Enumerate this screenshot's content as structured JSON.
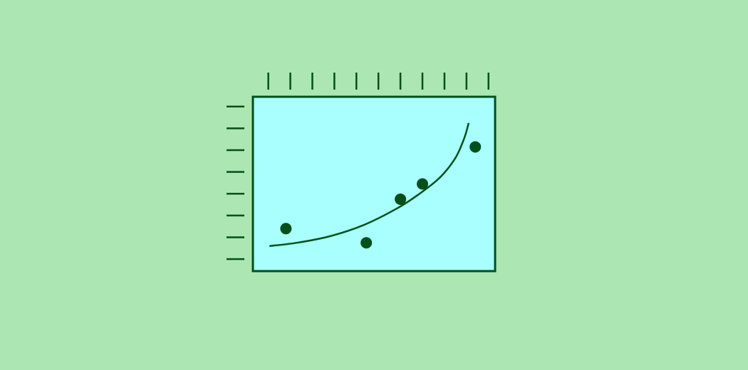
{
  "colors": {
    "background": "#ace6b2",
    "plot_fill": "#a8fffe",
    "ink": "#00501c"
  },
  "chart_data": {
    "type": "scatter",
    "title": "",
    "xlabel": "",
    "ylabel": "",
    "grid": false,
    "legend": "none",
    "xlim": [
      0,
      11
    ],
    "ylim": [
      0,
      8
    ],
    "x_ticks": [
      0.7,
      1.7,
      2.7,
      3.7,
      4.7,
      5.7,
      6.7,
      7.7,
      8.7,
      9.7,
      10.7
    ],
    "y_ticks": [
      0.55,
      1.55,
      2.55,
      3.55,
      4.55,
      5.55,
      6.55,
      7.55
    ],
    "points": [
      {
        "x": 1.5,
        "y": 1.95
      },
      {
        "x": 5.15,
        "y": 1.3
      },
      {
        "x": 6.7,
        "y": 3.3
      },
      {
        "x": 7.7,
        "y": 4.0
      },
      {
        "x": 10.1,
        "y": 5.7
      }
    ],
    "fit_curve": [
      {
        "x": 0.75,
        "y": 1.15
      },
      {
        "x": 2.0,
        "y": 1.3
      },
      {
        "x": 3.5,
        "y": 1.6
      },
      {
        "x": 5.0,
        "y": 2.1
      },
      {
        "x": 6.5,
        "y": 2.85
      },
      {
        "x": 7.5,
        "y": 3.5
      },
      {
        "x": 8.5,
        "y": 4.3
      },
      {
        "x": 9.2,
        "y": 5.2
      },
      {
        "x": 9.6,
        "y": 6.1
      },
      {
        "x": 9.8,
        "y": 6.8
      }
    ]
  }
}
